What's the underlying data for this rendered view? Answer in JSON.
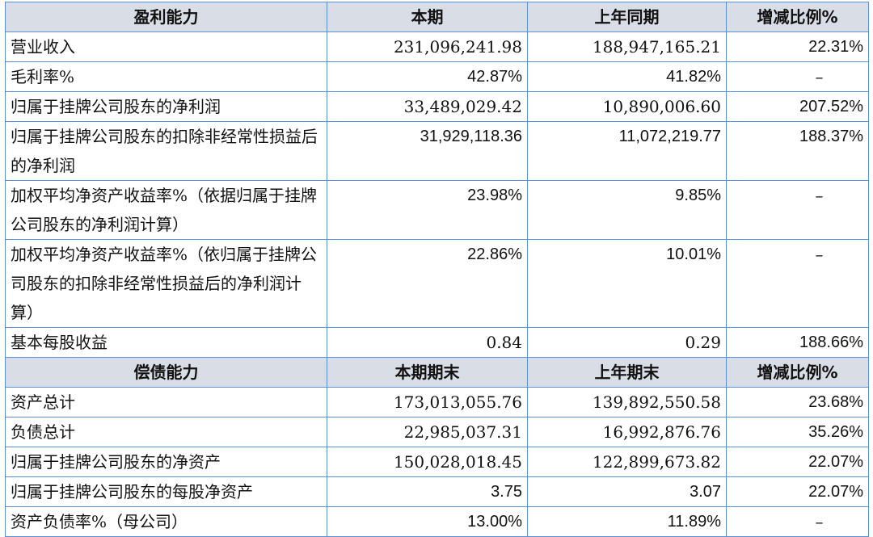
{
  "sections": [
    {
      "header": [
        "盈利能力",
        "本期",
        "上年同期",
        "增减比例%"
      ],
      "rows": [
        {
          "label": "营业收入",
          "current": "231,096,241.98",
          "previous": "188,947,165.21",
          "change": "22.31%"
        },
        {
          "label": "毛利率%",
          "current": "42.87%",
          "previous": "41.82%",
          "change": "–"
        },
        {
          "label": "归属于挂牌公司股东的净利润",
          "current": "33,489,029.42",
          "previous": "10,890,006.60",
          "change": "207.52%"
        },
        {
          "label": "归属于挂牌公司股东的扣除非经常性损益后的净利润",
          "current": "31,929,118.36",
          "previous": "11,072,219.77",
          "change": "188.37%"
        },
        {
          "label": "加权平均净资产收益率%（依据归属于挂牌公司股东的净利润计算）",
          "current": "23.98%",
          "previous": "9.85%",
          "change": "–"
        },
        {
          "label": "加权平均净资产收益率%（依归属于挂牌公司股东的扣除非经常性损益后的净利润计算）",
          "current": "22.86%",
          "previous": "10.01%",
          "change": "–"
        },
        {
          "label": "基本每股收益",
          "current": "0.84",
          "previous": "0.29",
          "change": "188.66%"
        }
      ]
    },
    {
      "header": [
        "偿债能力",
        "本期期末",
        "上年期末",
        "增减比例%"
      ],
      "rows": [
        {
          "label": "资产总计",
          "current": "173,013,055.76",
          "previous": "139,892,550.58",
          "change": "23.68%"
        },
        {
          "label": "负债总计",
          "current": "22,985,037.31",
          "previous": "16,992,876.76",
          "change": "35.26%"
        },
        {
          "label": "归属于挂牌公司股东的净资产",
          "current": "150,028,018.45",
          "previous": "122,899,673.82",
          "change": "22.07%"
        },
        {
          "label": "归属于挂牌公司股东的每股净资产",
          "current": "3.75",
          "previous": "3.07",
          "change": "22.07%"
        },
        {
          "label": "资产负债率%（母公司）",
          "current": "13.00%",
          "previous": "11.89%",
          "change": "–"
        }
      ]
    }
  ]
}
